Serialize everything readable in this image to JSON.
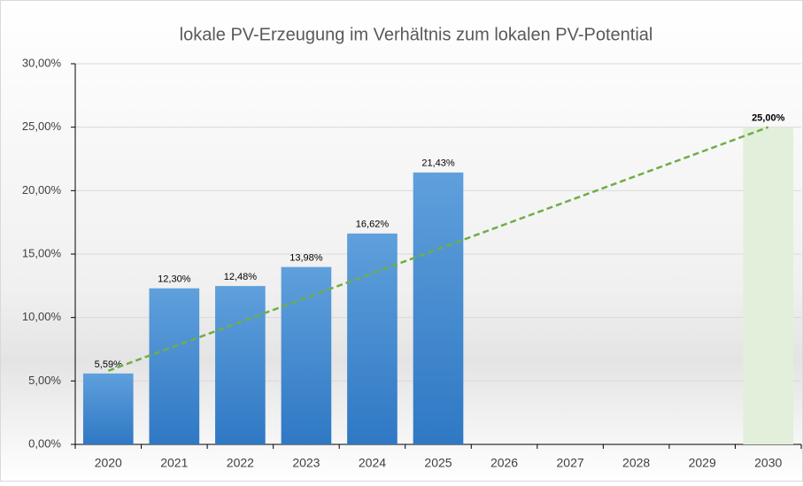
{
  "chart_data": {
    "type": "bar",
    "title": "lokale PV-Erzeugung im Verhältnis zum lokalen PV-Potential",
    "categories": [
      "2020",
      "2021",
      "2022",
      "2023",
      "2024",
      "2025",
      "2026",
      "2027",
      "2028",
      "2029",
      "2030"
    ],
    "values": [
      5.59,
      12.3,
      12.48,
      13.98,
      16.62,
      21.43,
      null,
      null,
      null,
      null,
      25.0
    ],
    "value_labels": [
      "5,59%",
      "12,30%",
      "12,48%",
      "13,98%",
      "16,62%",
      "21,43%",
      null,
      null,
      null,
      null,
      "25,00%"
    ],
    "colors": [
      "#4a8fd6",
      "#4a8fd6",
      "#4a8fd6",
      "#4a8fd6",
      "#4a8fd6",
      "#4a8fd6",
      null,
      null,
      null,
      null,
      "#e2efda"
    ],
    "ylim": [
      0,
      30
    ],
    "yticks": [
      {
        "value": 0,
        "label": "0,00%"
      },
      {
        "value": 5,
        "label": "5,00%"
      },
      {
        "value": 10,
        "label": "10,00%"
      },
      {
        "value": 15,
        "label": "15,00%"
      },
      {
        "value": 20,
        "label": "20,00%"
      },
      {
        "value": 25,
        "label": "25,00%"
      },
      {
        "value": 30,
        "label": "30,00%"
      }
    ],
    "grid": true,
    "trend_line": {
      "x": [
        "2020",
        "2030"
      ],
      "values": [
        5.8,
        25
      ],
      "color": "#70ad47"
    }
  }
}
